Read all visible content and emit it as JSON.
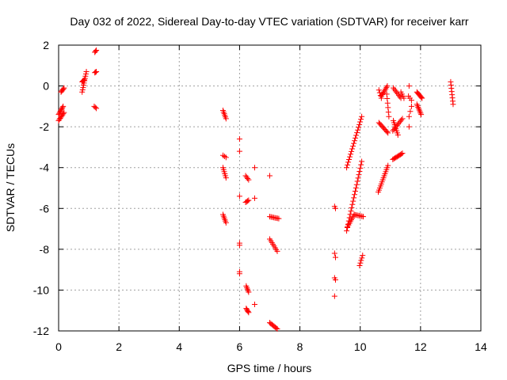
{
  "chart_data": {
    "type": "scatter",
    "title": "Day 032 of 2022, Sidereal Day-to-day VTEC variation (SDTVAR) for receiver karr",
    "xlabel": "GPS time / hours",
    "ylabel": "SDTVAR / TECUs",
    "xlim": [
      0,
      14
    ],
    "ylim": [
      -12,
      2
    ],
    "xticks": [
      0,
      2,
      4,
      6,
      8,
      10,
      12,
      14
    ],
    "yticks": [
      -12,
      -10,
      -8,
      -6,
      -4,
      -2,
      0,
      2
    ],
    "grid": true,
    "marker": "plus",
    "color": "#ff0000",
    "series": [
      {
        "name": "SDTVAR",
        "segments": [
          [
            0.0,
            -1.4,
            0.15,
            -1.0,
            8
          ],
          [
            0.0,
            -1.7,
            0.18,
            -1.3,
            8
          ],
          [
            0.08,
            -0.3,
            0.18,
            -0.1,
            5
          ],
          [
            0.78,
            0.2,
            0.85,
            0.3,
            4
          ],
          [
            0.78,
            -0.3,
            0.92,
            0.7,
            10
          ],
          [
            1.2,
            0.65,
            1.25,
            0.7,
            3
          ],
          [
            1.2,
            1.65,
            1.25,
            1.75,
            3
          ],
          [
            1.18,
            -1.0,
            1.25,
            -1.1,
            3
          ],
          [
            5.45,
            -1.2,
            5.55,
            -1.6,
            6
          ],
          [
            5.45,
            -3.4,
            5.55,
            -3.5,
            3
          ],
          [
            5.45,
            -4.0,
            5.55,
            -4.5,
            6
          ],
          [
            5.45,
            -6.3,
            5.55,
            -6.7,
            6
          ],
          [
            6.0,
            -2.6,
            6.0,
            -2.6,
            1
          ],
          [
            6.0,
            -3.2,
            6.0,
            -3.2,
            1
          ],
          [
            6.0,
            -5.4,
            6.0,
            -5.4,
            1
          ],
          [
            6.0,
            -7.7,
            6.0,
            -7.8,
            2
          ],
          [
            6.0,
            -9.1,
            6.0,
            -9.2,
            2
          ],
          [
            6.2,
            -4.4,
            6.3,
            -4.6,
            4
          ],
          [
            6.2,
            -5.7,
            6.3,
            -5.6,
            4
          ],
          [
            6.22,
            -9.8,
            6.3,
            -10.1,
            5
          ],
          [
            6.22,
            -10.9,
            6.3,
            -11.1,
            5
          ],
          [
            6.5,
            -4.0,
            6.5,
            -4.0,
            1
          ],
          [
            6.5,
            -5.5,
            6.5,
            -5.5,
            1
          ],
          [
            6.5,
            -10.7,
            6.5,
            -10.7,
            1
          ],
          [
            7.0,
            -4.4,
            7.0,
            -4.4,
            1
          ],
          [
            7.0,
            -6.4,
            7.3,
            -6.5,
            8
          ],
          [
            7.0,
            -7.5,
            7.25,
            -8.1,
            8
          ],
          [
            7.0,
            -11.6,
            7.25,
            -11.9,
            8
          ],
          [
            9.15,
            -5.9,
            9.18,
            -6.0,
            2
          ],
          [
            9.15,
            -8.2,
            9.18,
            -8.4,
            2
          ],
          [
            9.15,
            -9.4,
            9.18,
            -9.5,
            2
          ],
          [
            9.15,
            -10.3,
            9.15,
            -10.3,
            1
          ],
          [
            9.55,
            -4.0,
            10.05,
            -1.5,
            20
          ],
          [
            9.55,
            -7.1,
            10.05,
            -3.7,
            22
          ],
          [
            9.58,
            -6.9,
            9.8,
            -6.3,
            8
          ],
          [
            9.8,
            -6.3,
            10.1,
            -6.4,
            8
          ],
          [
            9.98,
            -8.8,
            10.08,
            -8.3,
            5
          ],
          [
            10.6,
            -5.2,
            10.92,
            -3.9,
            14
          ],
          [
            10.62,
            -1.8,
            10.92,
            -2.3,
            10
          ],
          [
            10.62,
            -0.2,
            10.7,
            -0.6,
            4
          ],
          [
            10.7,
            -0.5,
            10.9,
            0.0,
            8
          ],
          [
            10.88,
            -0.4,
            10.95,
            -1.5,
            6
          ],
          [
            11.08,
            -3.6,
            11.4,
            -3.3,
            10
          ],
          [
            11.08,
            -2.2,
            11.4,
            -1.6,
            10
          ],
          [
            11.1,
            -1.7,
            11.25,
            -2.4,
            8
          ],
          [
            11.1,
            -0.1,
            11.35,
            -0.6,
            8
          ],
          [
            11.35,
            -0.3,
            11.45,
            -0.6,
            4
          ],
          [
            11.6,
            -0.5,
            11.7,
            -0.7,
            3
          ],
          [
            11.62,
            0.0,
            11.62,
            0.0,
            1
          ],
          [
            11.62,
            -1.5,
            11.7,
            -1.0,
            3
          ],
          [
            11.62,
            -2.0,
            11.62,
            -2.0,
            1
          ],
          [
            11.88,
            -0.3,
            12.05,
            -0.6,
            8
          ],
          [
            11.88,
            -0.9,
            12.02,
            -1.4,
            8
          ],
          [
            13.0,
            0.2,
            13.08,
            -0.9,
            8
          ]
        ]
      }
    ]
  }
}
